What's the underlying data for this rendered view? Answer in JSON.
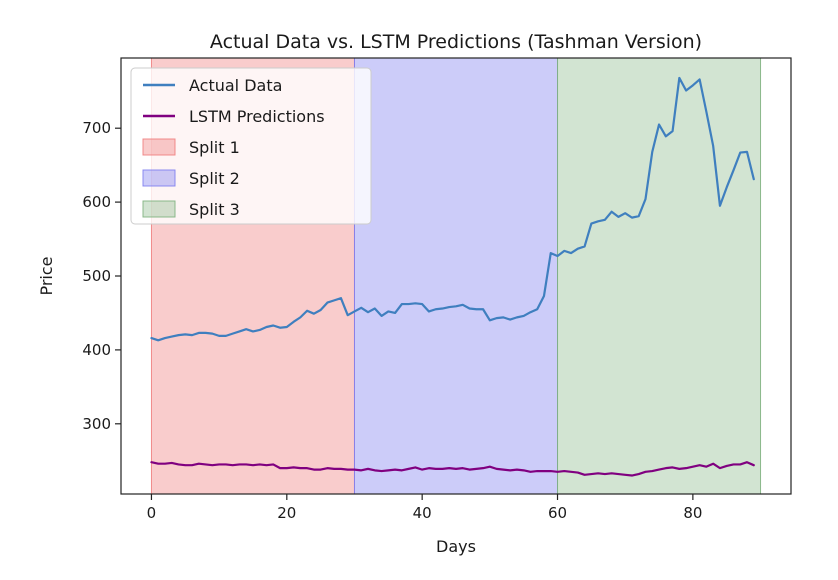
{
  "chart_data": {
    "type": "line",
    "title": "Actual Data vs. LSTM Predictions (Tashman Version)",
    "xlabel": "Days",
    "ylabel": "Price",
    "xlim": [
      -4.5,
      94.5
    ],
    "ylim": [
      205,
      795
    ],
    "xticks": [
      0,
      20,
      40,
      60,
      80
    ],
    "yticks": [
      300,
      400,
      500,
      600,
      700
    ],
    "grid": false,
    "legend_position": "top-left",
    "spans": [
      {
        "name": "Split 1",
        "start": 0,
        "end": 30,
        "color": "#f08080",
        "opacity": 0.4
      },
      {
        "name": "Split 2",
        "start": 30,
        "end": 60,
        "color": "#8080f0",
        "opacity": 0.4
      },
      {
        "name": "Split 3",
        "start": 60,
        "end": 90,
        "color": "#7fb37f",
        "opacity": 0.35
      }
    ],
    "series": [
      {
        "name": "Actual Data",
        "color": "#3f7fbf",
        "x": [
          0,
          1,
          2,
          3,
          4,
          5,
          6,
          7,
          8,
          9,
          10,
          11,
          12,
          13,
          14,
          15,
          16,
          17,
          18,
          19,
          20,
          21,
          22,
          23,
          24,
          25,
          26,
          27,
          28,
          29,
          30,
          31,
          32,
          33,
          34,
          35,
          36,
          37,
          38,
          39,
          40,
          41,
          42,
          43,
          44,
          45,
          46,
          47,
          48,
          49,
          50,
          51,
          52,
          53,
          54,
          55,
          56,
          57,
          58,
          59,
          60,
          61,
          62,
          63,
          64,
          65,
          66,
          67,
          68,
          69,
          70,
          71,
          72,
          73,
          74,
          75,
          76,
          77,
          78,
          79,
          80,
          81,
          82,
          83,
          84,
          85,
          86,
          87,
          88,
          89
        ],
        "values": [
          416,
          413,
          416,
          418,
          420,
          421,
          420,
          423,
          423,
          422,
          419,
          419,
          422,
          425,
          428,
          425,
          427,
          431,
          433,
          430,
          431,
          438,
          444,
          453,
          449,
          454,
          464,
          467,
          470,
          447,
          452,
          457,
          451,
          456,
          446,
          452,
          450,
          462,
          462,
          463,
          462,
          452,
          455,
          456,
          458,
          459,
          461,
          456,
          455,
          455,
          440,
          443,
          444,
          441,
          444,
          446,
          451,
          455,
          473,
          531,
          527,
          534,
          531,
          537,
          540,
          571,
          574,
          576,
          587,
          580,
          585,
          579,
          581,
          604,
          668,
          705,
          689,
          696,
          768,
          751,
          758,
          766,
          722,
          676,
          595,
          620,
          643,
          667,
          668,
          631
        ]
      },
      {
        "name": "LSTM Predictions",
        "color": "#800080",
        "x": [
          0,
          1,
          2,
          3,
          4,
          5,
          6,
          7,
          8,
          9,
          10,
          11,
          12,
          13,
          14,
          15,
          16,
          17,
          18,
          19,
          20,
          21,
          22,
          23,
          24,
          25,
          26,
          27,
          28,
          29,
          30,
          31,
          32,
          33,
          34,
          35,
          36,
          37,
          38,
          39,
          40,
          41,
          42,
          43,
          44,
          45,
          46,
          47,
          48,
          49,
          50,
          51,
          52,
          53,
          54,
          55,
          56,
          57,
          58,
          59,
          60,
          61,
          62,
          63,
          64,
          65,
          66,
          67,
          68,
          69,
          70,
          71,
          72,
          73,
          74,
          75,
          76,
          77,
          78,
          79,
          80,
          81,
          82,
          83,
          84,
          85,
          86,
          87,
          88,
          89
        ],
        "values": [
          248,
          246,
          246,
          247,
          245,
          244,
          244,
          246,
          245,
          244,
          245,
          245,
          244,
          245,
          245,
          244,
          245,
          244,
          245,
          240,
          240,
          241,
          240,
          240,
          238,
          238,
          240,
          239,
          239,
          238,
          238,
          237,
          239,
          237,
          236,
          237,
          238,
          237,
          239,
          241,
          238,
          240,
          239,
          239,
          240,
          239,
          240,
          238,
          239,
          240,
          242,
          239,
          238,
          237,
          238,
          237,
          235,
          236,
          236,
          236,
          235,
          236,
          235,
          234,
          231,
          232,
          233,
          232,
          233,
          232,
          231,
          230,
          232,
          235,
          236,
          238,
          240,
          241,
          239,
          240,
          242,
          244,
          242,
          246,
          240,
          243,
          245,
          245,
          248,
          244
        ]
      }
    ]
  }
}
